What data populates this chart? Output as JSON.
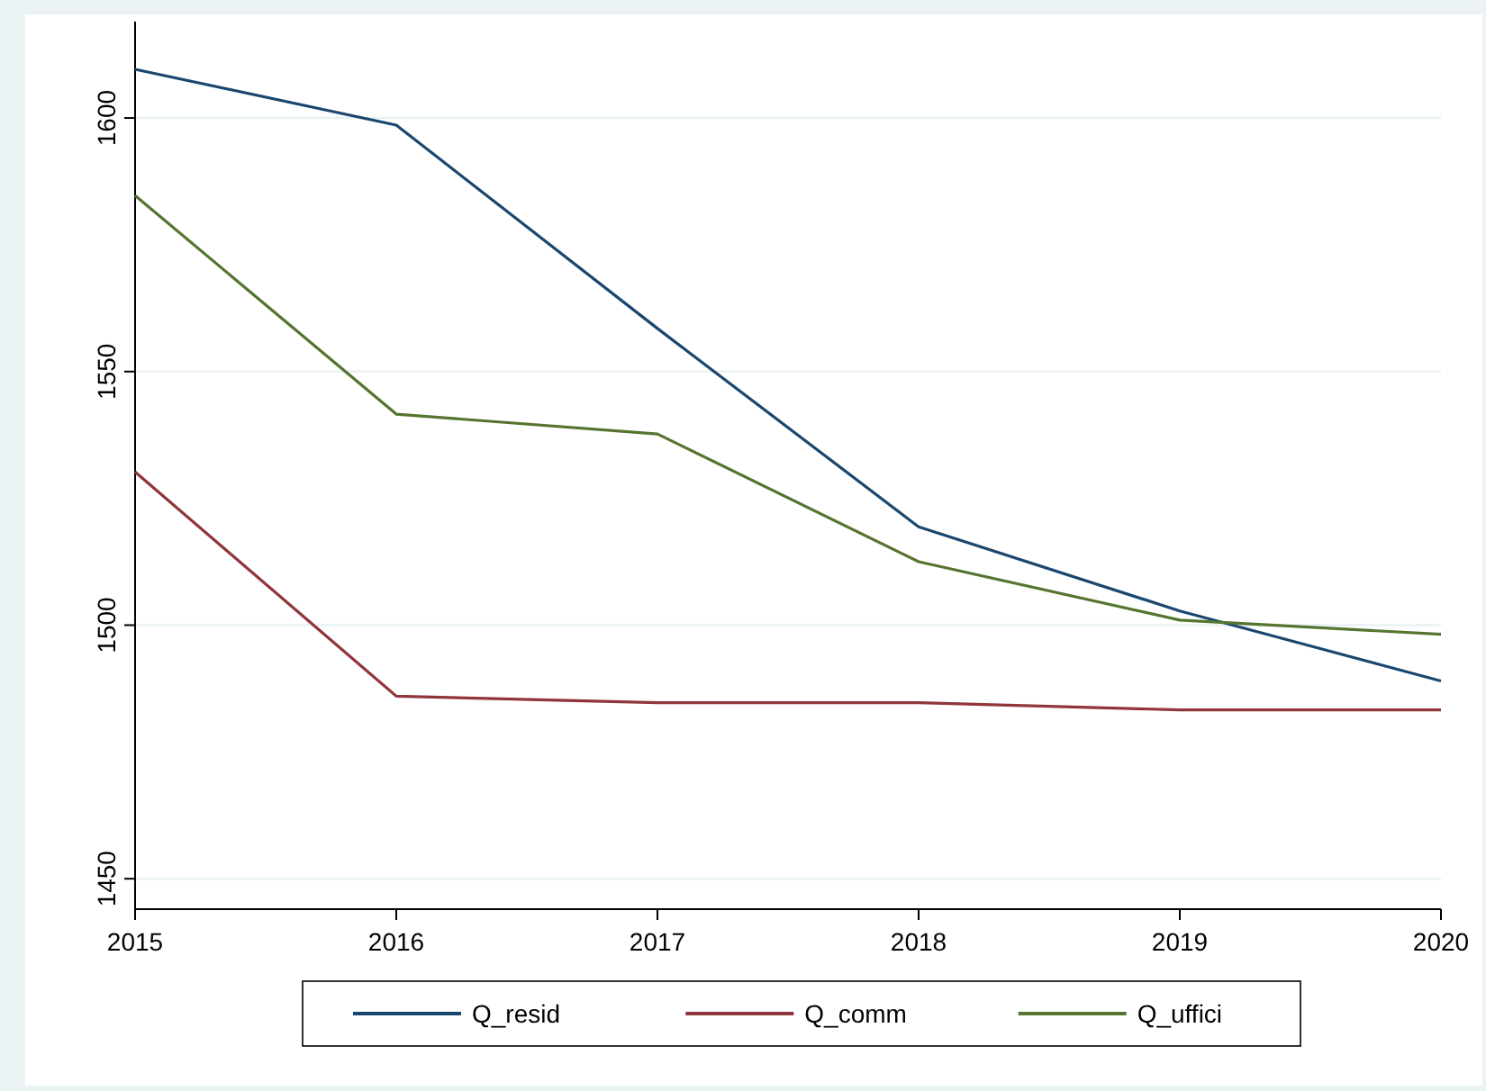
{
  "chart_data": {
    "type": "line",
    "x": [
      2015,
      2016,
      2017,
      2018,
      2019,
      2020
    ],
    "series": [
      {
        "name": "Q_resid",
        "color": "#1a476f",
        "values": [
          1609.6,
          1598.6,
          1558.5,
          1519.4,
          1502.8,
          1489
        ]
      },
      {
        "name": "Q_comm",
        "color": "#90353b",
        "values": [
          1530.2,
          1486,
          1484.7,
          1484.7,
          1483.3,
          1483.3
        ]
      },
      {
        "name": "Q_uffici",
        "color": "#55752f",
        "values": [
          1584.7,
          1541.6,
          1537.7,
          1512.5,
          1501,
          1498.2
        ]
      }
    ],
    "xlim": [
      2015,
      2020
    ],
    "xticks": [
      2015,
      2016,
      2017,
      2018,
      2019,
      2020
    ],
    "ylim": [
      1444,
      1619
    ],
    "yticks": [
      1450,
      1500,
      1550,
      1600
    ],
    "grid": "y",
    "legend": "bottom",
    "marker": "none",
    "line_style": "solid"
  }
}
